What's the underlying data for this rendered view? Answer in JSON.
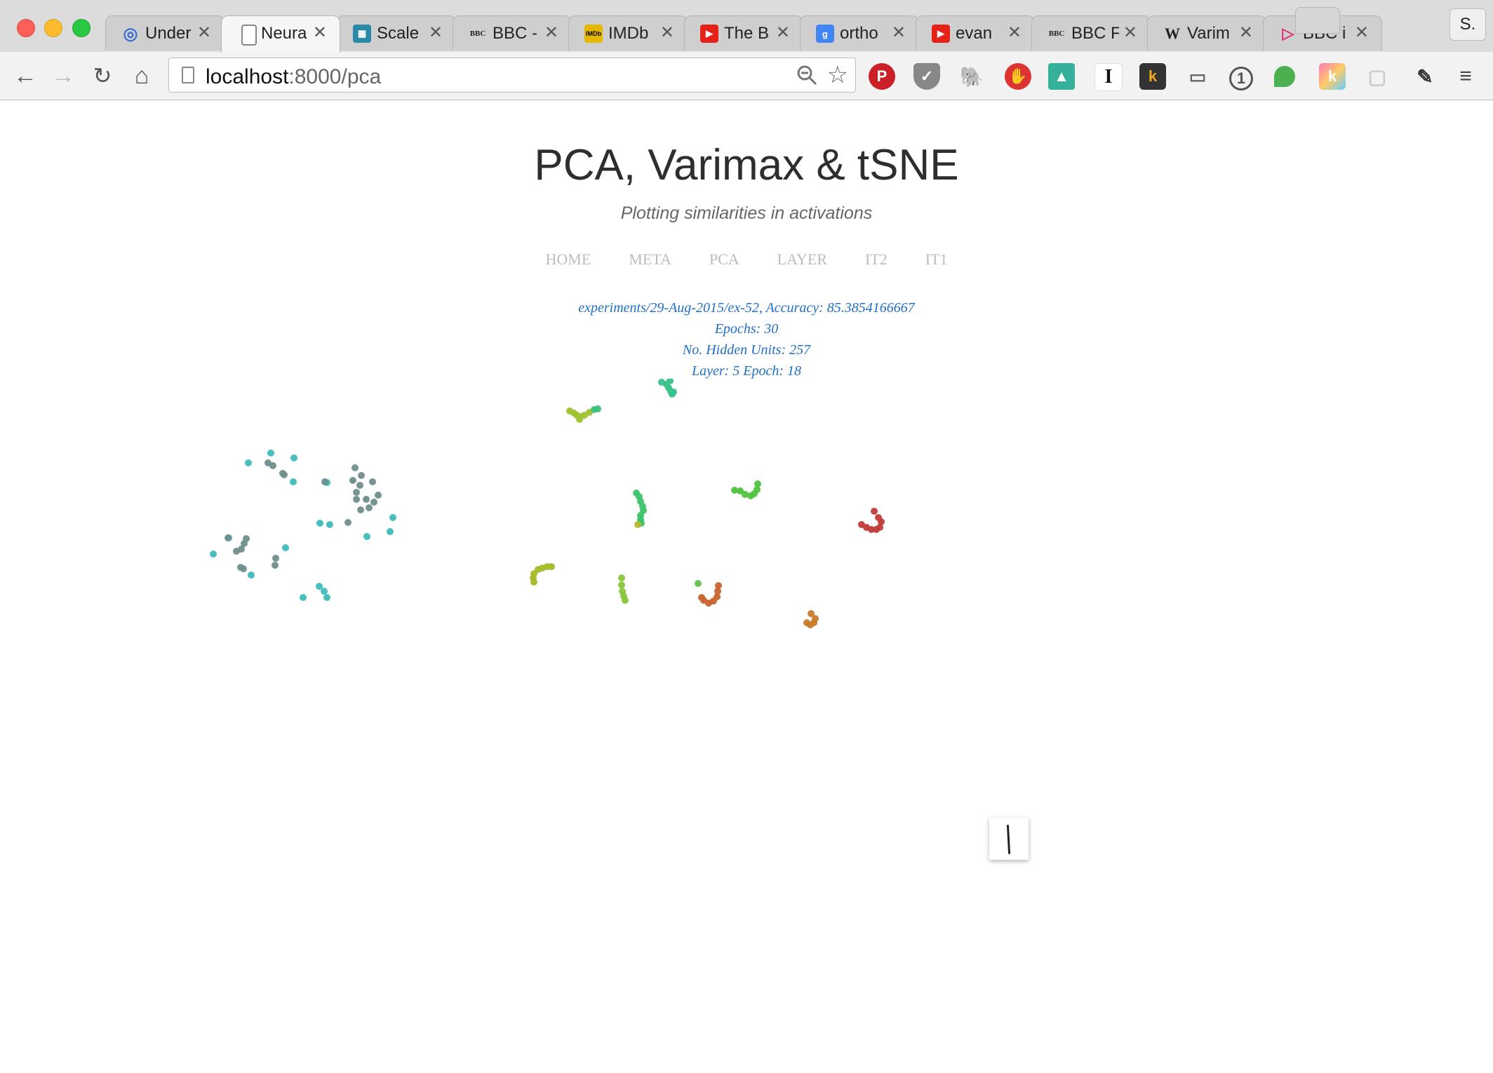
{
  "browser": {
    "tabs": [
      {
        "title": "Under",
        "icon": "spiral-icon",
        "color": "#3b6fd6"
      },
      {
        "title": "Neura",
        "icon": "page-icon",
        "color": "#888888"
      },
      {
        "title": "Scale",
        "icon": "mosaic-icon",
        "color": "#2a8aa8"
      },
      {
        "title": "BBC -",
        "icon": "bbc-icon",
        "color": "#222222"
      },
      {
        "title": "IMDb",
        "icon": "imdb-icon",
        "color": "#e6b800"
      },
      {
        "title": "The B",
        "icon": "youtube-icon",
        "color": "#e62117"
      },
      {
        "title": "ortho",
        "icon": "google-icon",
        "color": "#4285f4"
      },
      {
        "title": "evan",
        "icon": "youtube-icon",
        "color": "#e62117"
      },
      {
        "title": "BBC F",
        "icon": "bbc-icon",
        "color": "#222222"
      },
      {
        "title": "Varim",
        "icon": "wikipedia-icon",
        "color": "#222222"
      },
      {
        "title": "BBC i",
        "icon": "iplayer-icon",
        "color": "#e4317c"
      }
    ],
    "profile_label": "S.",
    "url_host": "localhost",
    "url_path": ":8000/pca"
  },
  "page": {
    "title": "PCA, Varimax & tSNE",
    "subtitle": "Plotting similarities in activations",
    "nav": [
      "HOME",
      "META",
      "PCA",
      "LAYER",
      "IT2",
      "IT1"
    ],
    "meta": {
      "experiment": "experiments/29-Aug-2015/ex-52, Accuracy: 85.3854166667",
      "epochs": "Epochs: 30",
      "hidden_units": "No. Hidden Units: 257",
      "layer_epoch": "Layer: 5 Epoch: 18"
    }
  },
  "chart_data": {
    "type": "scatter",
    "title": "",
    "xlabel": "",
    "ylabel": "",
    "grid": false,
    "clusters": [
      {
        "color": "#3dbcbc",
        "points": [
          [
            354,
            660
          ],
          [
            386,
            646
          ],
          [
            419,
            653
          ],
          [
            418,
            687
          ],
          [
            304,
            790
          ],
          [
            326,
            767
          ],
          [
            358,
            820
          ],
          [
            407,
            781
          ],
          [
            432,
            852
          ],
          [
            455,
            836
          ],
          [
            462,
            843
          ],
          [
            466,
            852
          ],
          [
            456,
            746
          ],
          [
            470,
            748
          ],
          [
            523,
            765
          ],
          [
            556,
            758
          ],
          [
            560,
            738
          ],
          [
            466,
            688
          ]
        ]
      },
      {
        "color": "#6f8f8c",
        "points": [
          [
            382,
            660
          ],
          [
            389,
            664
          ],
          [
            403,
            675
          ],
          [
            405,
            677
          ],
          [
            463,
            687
          ],
          [
            506,
            667
          ],
          [
            515,
            678
          ],
          [
            503,
            685
          ],
          [
            508,
            702
          ],
          [
            513,
            692
          ],
          [
            522,
            712
          ],
          [
            531,
            687
          ],
          [
            539,
            706
          ],
          [
            508,
            712
          ],
          [
            514,
            727
          ],
          [
            526,
            724
          ],
          [
            533,
            716
          ],
          [
            496,
            745
          ],
          [
            325,
            767
          ],
          [
            337,
            786
          ],
          [
            344,
            783
          ],
          [
            351,
            768
          ],
          [
            348,
            775
          ],
          [
            393,
            796
          ],
          [
            392,
            806
          ],
          [
            343,
            809
          ],
          [
            347,
            811
          ]
        ]
      },
      {
        "color": "#2ec45b",
        "points": [
          [
            1002,
            474
          ],
          [
            996,
            476
          ],
          [
            990,
            477
          ],
          [
            1006,
            475
          ],
          [
            985,
            482
          ],
          [
            986,
            488
          ],
          [
            983,
            495
          ],
          [
            981,
            500
          ],
          [
            978,
            498
          ]
        ]
      },
      {
        "color": "#36c28a",
        "points": [
          [
            965,
            518
          ],
          [
            962,
            525
          ],
          [
            958,
            532
          ],
          [
            943,
            545
          ],
          [
            950,
            548
          ],
          [
            955,
            543
          ],
          [
            953,
            553
          ],
          [
            956,
            558
          ],
          [
            958,
            562
          ],
          [
            960,
            559
          ]
        ]
      },
      {
        "color": "#9fc22f",
        "points": [
          [
            812,
            586
          ],
          [
            818,
            589
          ],
          [
            822,
            592
          ],
          [
            828,
            594
          ],
          [
            826,
            598
          ],
          [
            833,
            592
          ],
          [
            840,
            588
          ]
        ]
      },
      {
        "color": "#3cc07a",
        "points": [
          [
            847,
            584
          ],
          [
            852,
            583
          ]
        ]
      },
      {
        "color": "#3bc46a",
        "points": [
          [
            907,
            703
          ],
          [
            911,
            708
          ],
          [
            913,
            715
          ],
          [
            916,
            722
          ],
          [
            917,
            728
          ],
          [
            913,
            735
          ],
          [
            913,
            741
          ],
          [
            914,
            746
          ]
        ]
      },
      {
        "color": "#b6b830",
        "points": [
          [
            909,
            748
          ]
        ]
      },
      {
        "color": "#4ec33e",
        "points": [
          [
            1080,
            690
          ],
          [
            1079,
            698
          ],
          [
            1075,
            704
          ],
          [
            1070,
            707
          ],
          [
            1062,
            705
          ],
          [
            1055,
            700
          ],
          [
            1047,
            699
          ]
        ]
      },
      {
        "color": "#c23a3a",
        "points": [
          [
            1246,
            729
          ],
          [
            1252,
            738
          ],
          [
            1256,
            744
          ],
          [
            1254,
            752
          ],
          [
            1249,
            755
          ],
          [
            1242,
            755
          ],
          [
            1235,
            752
          ],
          [
            1228,
            748
          ]
        ]
      },
      {
        "color": "#a7b92a",
        "points": [
          [
            761,
            818
          ],
          [
            767,
            812
          ],
          [
            773,
            810
          ],
          [
            780,
            808
          ],
          [
            786,
            808
          ],
          [
            760,
            824
          ],
          [
            761,
            830
          ]
        ]
      },
      {
        "color": "#8ac43a",
        "points": [
          [
            886,
            824
          ],
          [
            886,
            834
          ],
          [
            887,
            843
          ],
          [
            889,
            850
          ],
          [
            891,
            856
          ]
        ]
      },
      {
        "color": "#c9622d",
        "points": [
          [
            1024,
            835
          ],
          [
            1023,
            843
          ],
          [
            1022,
            851
          ],
          [
            1017,
            857
          ],
          [
            1010,
            860
          ],
          [
            1003,
            856
          ],
          [
            1000,
            852
          ]
        ]
      },
      {
        "color": "#65bf49",
        "points": [
          [
            995,
            832
          ]
        ]
      },
      {
        "color": "#c97a2a",
        "points": [
          [
            1156,
            875
          ],
          [
            1162,
            882
          ],
          [
            1160,
            888
          ],
          [
            1155,
            891
          ],
          [
            1150,
            888
          ]
        ]
      }
    ]
  }
}
